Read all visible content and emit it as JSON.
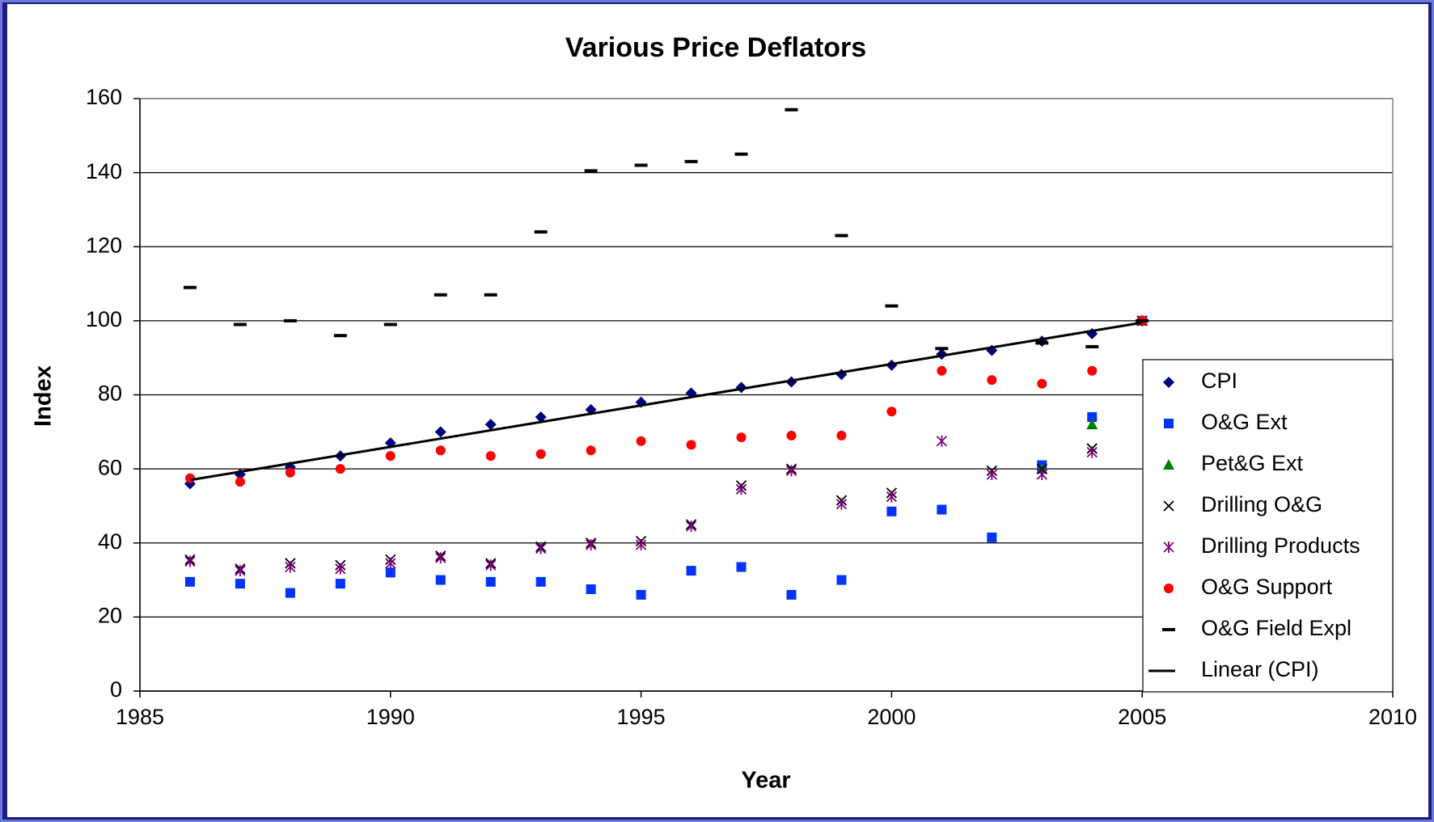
{
  "chart_data": {
    "type": "scatter",
    "title": "Various Price Deflators",
    "x_label": "Year",
    "y_label": "Index",
    "x": [
      1986,
      1987,
      1988,
      1989,
      1990,
      1991,
      1992,
      1993,
      1994,
      1995,
      1996,
      1997,
      1998,
      1999,
      2000,
      2001,
      2002,
      2003,
      2004,
      2005
    ],
    "xlim": [
      1985,
      2010
    ],
    "xticks": [
      1985,
      1990,
      1995,
      2000,
      2005,
      2010
    ],
    "ylim": [
      0,
      160
    ],
    "yticks": [
      0,
      20,
      40,
      60,
      80,
      100,
      120,
      140,
      160
    ],
    "grid": true,
    "series": [
      {
        "name": "CPI",
        "color": "#000080",
        "marker": "diamond",
        "values": [
          56,
          58.5,
          60.5,
          63.5,
          67,
          70,
          72,
          74,
          76,
          78,
          80.5,
          82,
          83.5,
          85.5,
          88,
          91,
          92,
          94.5,
          96.5,
          100
        ]
      },
      {
        "name": "O&G Ext",
        "color": "#0033ff",
        "marker": "square",
        "values": [
          29.5,
          29,
          26.5,
          29,
          32,
          30,
          29.5,
          29.5,
          27.5,
          26,
          32.5,
          33.5,
          26,
          30,
          48.5,
          49,
          41.5,
          61,
          74,
          100
        ]
      },
      {
        "name": "Pet&G Ext",
        "color": "#008000",
        "marker": "triangle",
        "values": [
          null,
          null,
          null,
          null,
          null,
          null,
          null,
          null,
          null,
          null,
          null,
          null,
          null,
          null,
          null,
          null,
          null,
          60,
          72,
          100
        ]
      },
      {
        "name": "Drilling O&G",
        "color": "#000000",
        "marker": "x",
        "values": [
          35.5,
          33,
          34.5,
          34,
          35.5,
          36.5,
          34.5,
          39,
          40,
          40.5,
          45,
          55.5,
          60,
          51.5,
          53.5,
          null,
          59.5,
          60,
          65.5,
          100
        ]
      },
      {
        "name": "Drilling Products",
        "color": "#800080",
        "marker": "star",
        "values": [
          35,
          32.5,
          33.5,
          33,
          34.5,
          36,
          34,
          38.5,
          39.5,
          39.5,
          44.5,
          54.5,
          59.5,
          50.5,
          52.5,
          67.5,
          58.5,
          58.5,
          64.5,
          100
        ]
      },
      {
        "name": "O&G Support",
        "color": "#ff0000",
        "marker": "circle",
        "values": [
          57.5,
          56.5,
          59,
          60,
          63.5,
          65,
          63.5,
          64,
          65,
          67.5,
          66.5,
          68.5,
          69,
          69,
          75.5,
          86.5,
          84,
          83,
          86.5,
          100
        ]
      },
      {
        "name": "O&G Field Expl",
        "color": "#000000",
        "marker": "dash",
        "values": [
          109,
          99,
          100,
          96,
          99,
          107,
          107,
          124,
          140.5,
          142,
          143,
          145,
          157,
          123,
          104,
          92.5,
          null,
          94,
          93,
          100
        ]
      },
      {
        "name": "Linear (CPI)",
        "color": "#000000",
        "marker": "line",
        "x": [
          1986,
          2005
        ],
        "values": [
          57,
          99.5
        ]
      }
    ]
  }
}
